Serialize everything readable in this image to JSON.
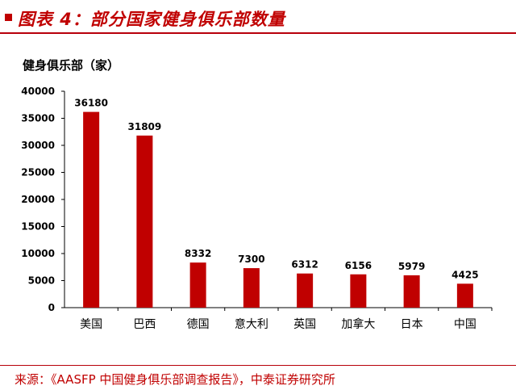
{
  "header": {
    "title": "图表 4：部分国家健身俱乐部数量"
  },
  "footer": {
    "source": "来源：《AASFP 中国健身俱乐部调查报告》，中泰证券研究所"
  },
  "chart_data": {
    "type": "bar",
    "ylabel": "健身俱乐部（家）",
    "categories": [
      "美国",
      "巴西",
      "德国",
      "意大利",
      "英国",
      "加拿大",
      "日本",
      "中国"
    ],
    "values": [
      36180,
      31809,
      8332,
      7300,
      6312,
      6156,
      5979,
      4425
    ],
    "ylim": [
      0,
      40000
    ],
    "yticks": [
      0,
      5000,
      10000,
      15000,
      20000,
      25000,
      30000,
      35000,
      40000
    ],
    "grid": false,
    "legend": "none",
    "bar_color": "#c00000"
  }
}
